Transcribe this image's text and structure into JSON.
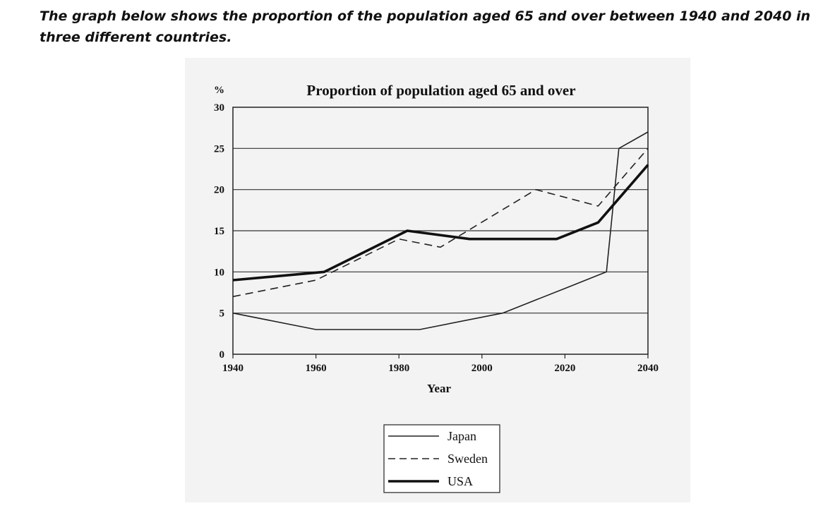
{
  "intro_text": "The graph below shows the proportion of the population aged 65 and over between 1940 and 2040 in three different countries.",
  "chart_data": {
    "type": "line",
    "title": "Proportion of population aged 65 and over",
    "xlabel": "Year",
    "ylabel": "%",
    "xlim": [
      1940,
      2040
    ],
    "ylim": [
      0,
      30
    ],
    "x_ticks": [
      "1940",
      "1960",
      "1980",
      "2000",
      "2020",
      "2040"
    ],
    "y_ticks": [
      "0",
      "5",
      "10",
      "15",
      "20",
      "25",
      "30"
    ],
    "grid": "horizontal",
    "legend_position": "bottom-center",
    "series": [
      {
        "name": "Japan",
        "style": "thin-solid",
        "color": "#222222",
        "points": [
          [
            1940,
            5
          ],
          [
            1960,
            3
          ],
          [
            1970,
            3
          ],
          [
            1985,
            3
          ],
          [
            2005,
            5
          ],
          [
            2020,
            8
          ],
          [
            2030,
            10
          ],
          [
            2033,
            25
          ],
          [
            2040,
            27
          ]
        ]
      },
      {
        "name": "Sweden",
        "style": "dashed",
        "color": "#222222",
        "points": [
          [
            1940,
            7
          ],
          [
            1960,
            9
          ],
          [
            1980,
            14
          ],
          [
            1990,
            13
          ],
          [
            2013,
            20
          ],
          [
            2028,
            18
          ],
          [
            2040,
            25
          ]
        ]
      },
      {
        "name": "USA",
        "style": "thick-solid",
        "color": "#111111",
        "points": [
          [
            1940,
            9
          ],
          [
            1962,
            10
          ],
          [
            1982,
            15
          ],
          [
            1997,
            14
          ],
          [
            2018,
            14
          ],
          [
            2028,
            16
          ],
          [
            2040,
            23
          ]
        ]
      }
    ]
  }
}
